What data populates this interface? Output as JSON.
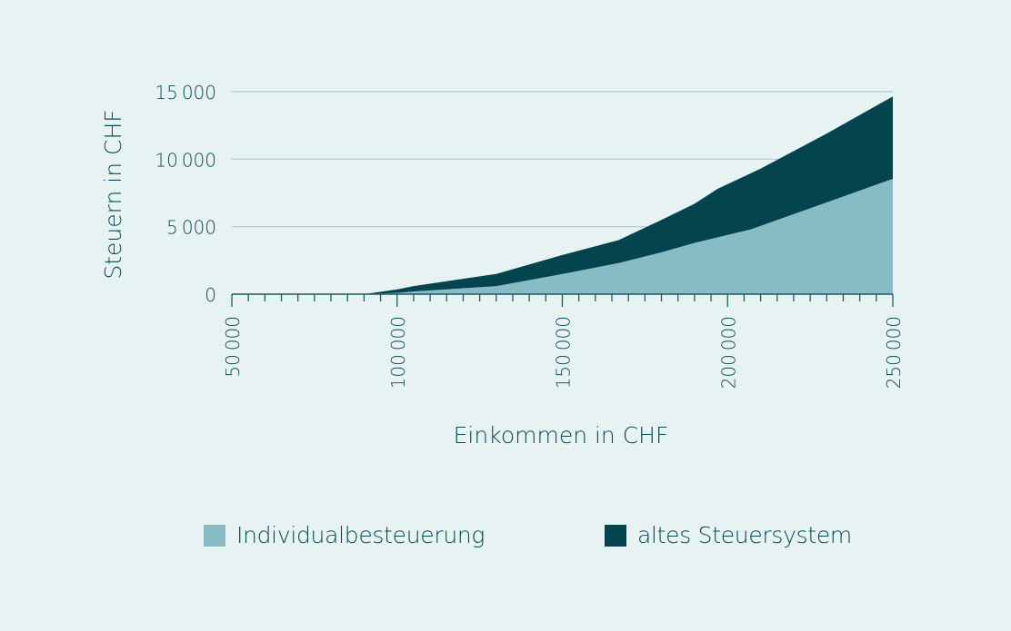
{
  "chart_data": {
    "type": "area",
    "stacked": false,
    "title": "",
    "xlabel": "Einkommen in CHF",
    "ylabel": "Steuern in CHF",
    "xlim": [
      50000,
      250000
    ],
    "ylim": [
      0,
      15000
    ],
    "x_ticks": [
      50000,
      100000,
      150000,
      200000,
      250000
    ],
    "x_tick_labels": [
      "50000",
      "100000",
      "150000",
      "200000",
      "250000"
    ],
    "x_minor_tick_step": 5000,
    "y_ticks": [
      0,
      5000,
      10000,
      15000
    ],
    "y_tick_labels": [
      "0",
      "5000",
      "10000",
      "15000"
    ],
    "grid": {
      "horizontal": true,
      "vertical": false
    },
    "legend_position": "bottom",
    "series": [
      {
        "name": "altes Steuersystem",
        "color": "#03444f",
        "x": [
          50000,
          90000,
          100000,
          105000,
          130000,
          150000,
          167000,
          180000,
          190000,
          197000,
          210000,
          230000,
          250000
        ],
        "values": [
          0,
          0,
          350,
          600,
          1500,
          2900,
          4000,
          5500,
          6700,
          7800,
          9300,
          11900,
          14650
        ]
      },
      {
        "name": "Individualbesteuerung",
        "color": "#87bcc4",
        "x": [
          50000,
          90000,
          100000,
          105000,
          130000,
          150000,
          167000,
          180000,
          190000,
          207000,
          230000,
          250000
        ],
        "values": [
          0,
          0,
          100,
          200,
          600,
          1500,
          2300,
          3100,
          3800,
          4800,
          6800,
          8550
        ]
      }
    ]
  },
  "legend": {
    "items": [
      {
        "label": "Individualbesteuerung",
        "color": "#87bcc4"
      },
      {
        "label": "altes Steuersystem",
        "color": "#03444f"
      }
    ]
  },
  "colors": {
    "background": "#e7f2f3",
    "axis": "#1f5a63",
    "grid": "#a9cdd3",
    "text": "#0b4a55"
  }
}
